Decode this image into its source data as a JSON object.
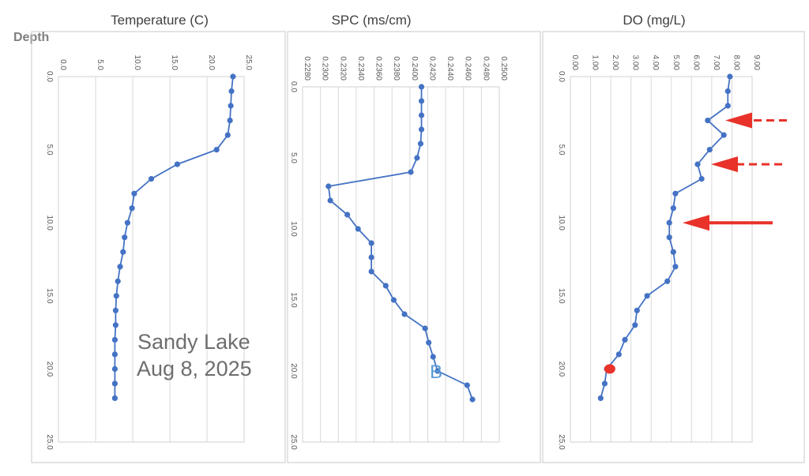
{
  "depth_label": "Depth",
  "chart_data": [
    {
      "type": "line",
      "title": "Temperature (C)",
      "xlim": [
        0,
        25
      ],
      "ylim": [
        0,
        25
      ],
      "y_inverted": true,
      "x_ticks": [
        "0.0",
        "5.0",
        "10.0",
        "15.0",
        "20.0",
        "25.0"
      ],
      "y_ticks": [
        "0.0",
        "5.0",
        "10.0",
        "15.0",
        "20.0",
        "25.0"
      ],
      "series": [
        {
          "x": [
            23.5,
            23.3,
            23.2,
            23.1,
            22.8,
            21.3,
            16.0,
            12.5,
            10.2,
            9.9,
            9.3,
            8.9,
            8.7,
            8.3,
            8.0,
            7.8,
            7.7,
            7.7,
            7.6,
            7.6,
            7.6,
            7.6,
            7.6
          ],
          "y": [
            0,
            1,
            2,
            3,
            4,
            5,
            6,
            7,
            8,
            9,
            10,
            11,
            12,
            13,
            14,
            15,
            16,
            17,
            18,
            19,
            20,
            21,
            22
          ]
        }
      ],
      "annotation_lines": [
        "Sandy Lake",
        "Aug 8, 2025"
      ]
    },
    {
      "type": "line",
      "title": "SPC (ms/cm)",
      "xlim": [
        0.228,
        0.25
      ],
      "ylim": [
        0,
        25
      ],
      "y_inverted": true,
      "x_ticks": [
        "0.2280",
        "0.2300",
        "0.2320",
        "0.2340",
        "0.2360",
        "0.2380",
        "0.2400",
        "0.2420",
        "0.2440",
        "0.2460",
        "0.2480",
        "0.2500"
      ],
      "y_ticks": [
        "0.0",
        "5.0",
        "10.0",
        "15.0",
        "20.0",
        "25.0"
      ],
      "series": [
        {
          "x": [
            0.2413,
            0.2413,
            0.2413,
            0.2413,
            0.2412,
            0.2408,
            0.2401,
            0.2309,
            0.2311,
            0.233,
            0.2342,
            0.2357,
            0.2357,
            0.2357,
            0.2373,
            0.2382,
            0.2394,
            0.2417,
            0.2421,
            0.2426,
            0.2431,
            0.2464,
            0.247
          ],
          "y": [
            0,
            1,
            2,
            3,
            4,
            5,
            6,
            7,
            8,
            9,
            10,
            11,
            12,
            13,
            14,
            15,
            16,
            17,
            18,
            19,
            20,
            21,
            22
          ]
        }
      ],
      "annotation_letter": "B"
    },
    {
      "type": "line",
      "title": "DO (mg/L)",
      "xlim": [
        0,
        9
      ],
      "ylim": [
        0,
        25
      ],
      "y_inverted": true,
      "x_ticks": [
        "0.00",
        "1.00",
        "2.00",
        "3.00",
        "4.00",
        "5.00",
        "6.00",
        "7.00",
        "8.00",
        "9.00"
      ],
      "y_ticks": [
        "0.0",
        "5.0",
        "10.0",
        "15.0",
        "20.0",
        "25.0"
      ],
      "series": [
        {
          "x": [
            7.9,
            7.8,
            7.8,
            6.8,
            7.6,
            6.9,
            6.3,
            6.5,
            5.2,
            5.1,
            4.9,
            4.9,
            5.1,
            5.2,
            4.8,
            3.8,
            3.3,
            3.2,
            2.7,
            2.4,
            1.8,
            1.7,
            1.5
          ],
          "y": [
            0,
            1,
            2,
            3,
            4,
            5,
            6,
            7,
            8,
            9,
            10,
            11,
            12,
            13,
            14,
            15,
            16,
            17,
            18,
            19,
            20,
            21,
            22
          ]
        }
      ],
      "highlight_point": {
        "x": 1.95,
        "y": 20.0,
        "color": "#e8322a"
      },
      "arrows": [
        {
          "y": 3.0,
          "style": "dashed",
          "color": "#e8322a"
        },
        {
          "y": 6.0,
          "style": "dashed",
          "color": "#e8322a"
        },
        {
          "y": 10.0,
          "style": "solid",
          "color": "#e8322a"
        }
      ]
    }
  ],
  "colors": {
    "series": "#4472c4",
    "highlight": "#e8322a",
    "letter": "#5b9bd5"
  }
}
